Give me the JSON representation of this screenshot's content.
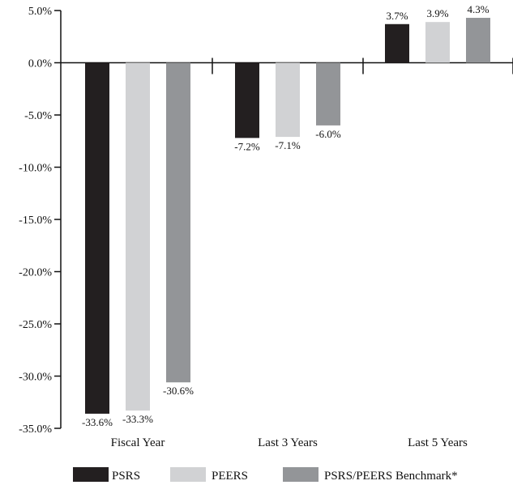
{
  "chart_data": {
    "type": "bar",
    "categories": [
      "Fiscal Year",
      "Last 3 Years",
      "Last 5 Years"
    ],
    "series": [
      {
        "name": "PSRS",
        "values": [
          -33.6,
          -7.2,
          3.7
        ],
        "labels": [
          "-33.6%",
          "-7.2%",
          "3.7%"
        ],
        "color": "#231f20"
      },
      {
        "name": "PEERS",
        "values": [
          -33.3,
          -7.1,
          3.9
        ],
        "labels": [
          "-33.3%",
          "-7.1%",
          "3.9%"
        ],
        "color": "#d1d2d4"
      },
      {
        "name": "PSRS/PEERS Benchmark*",
        "values": [
          -30.6,
          -6.0,
          4.3
        ],
        "labels": [
          "-30.6%",
          "-6.0%",
          "4.3%"
        ],
        "color": "#939598"
      }
    ],
    "ylim": [
      -35,
      5
    ],
    "yticks": [
      5,
      0,
      -5,
      -10,
      -15,
      -20,
      -25,
      -30,
      -35
    ],
    "ytick_labels": [
      "5.0%",
      "0.0%",
      "-5.0%",
      "-10.0%",
      "-15.0%",
      "-20.0%",
      "-25.0%",
      "-30.0%",
      "-35.0%"
    ],
    "title": "",
    "xlabel": "",
    "ylabel": "",
    "grid": false,
    "legend_position": "bottom"
  }
}
